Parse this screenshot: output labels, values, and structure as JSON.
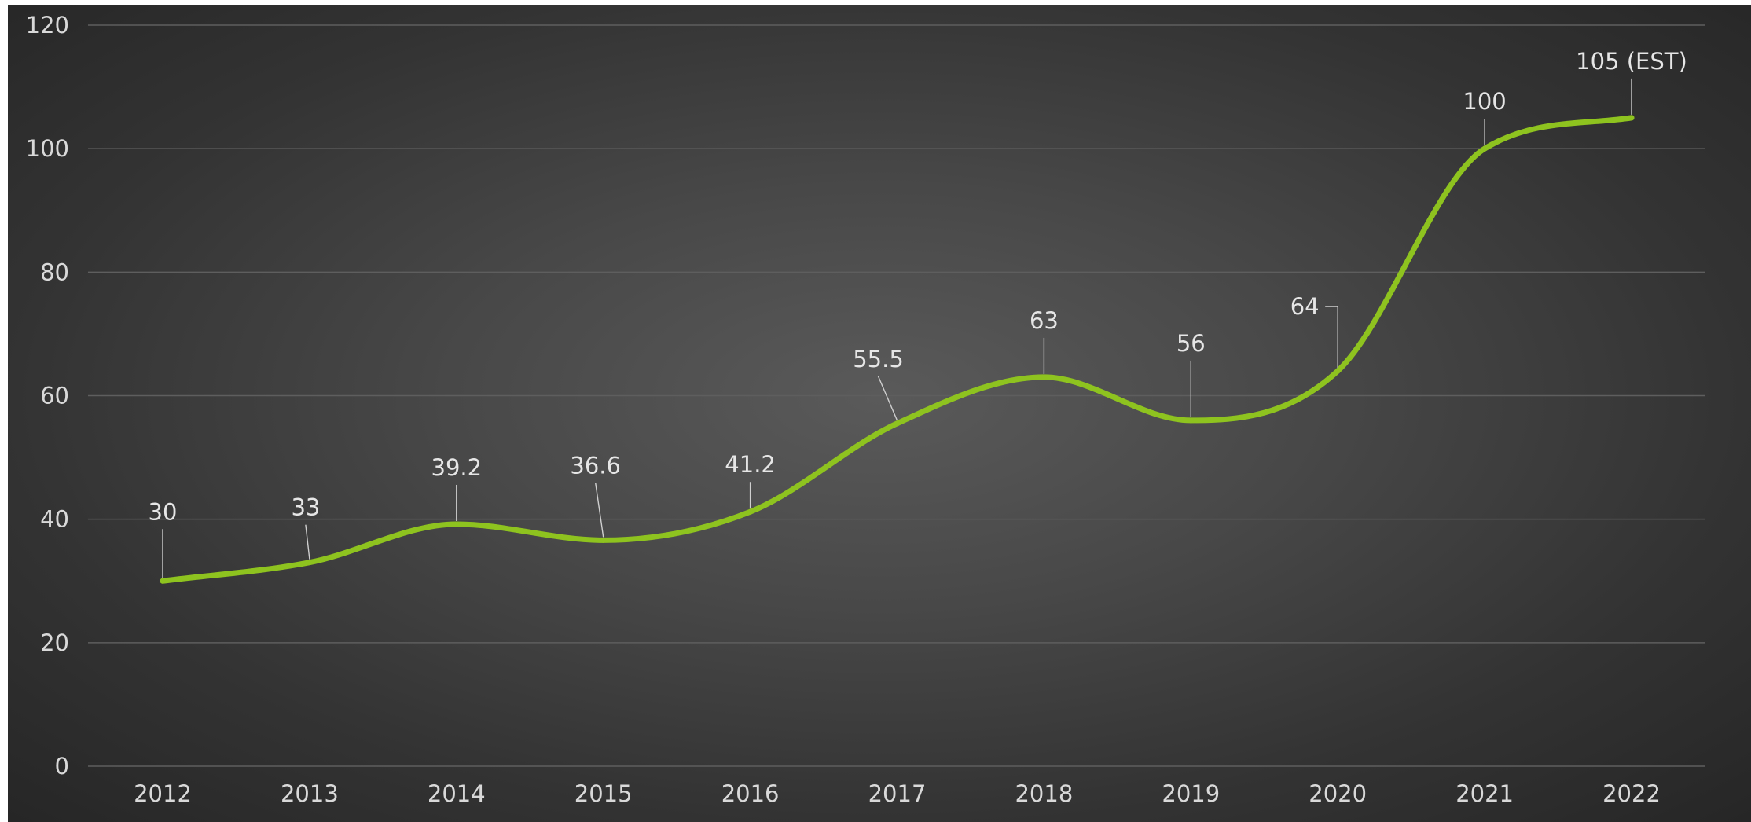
{
  "chart_data": {
    "type": "line",
    "title": "",
    "xlabel": "",
    "ylabel": "",
    "categories": [
      "2012",
      "2013",
      "2014",
      "2015",
      "2016",
      "2017",
      "2018",
      "2019",
      "2020",
      "2021",
      "2022"
    ],
    "series": [
      {
        "values": [
          30,
          33,
          39.2,
          36.6,
          41.2,
          55.5,
          63,
          56,
          64,
          100,
          105
        ],
        "labels": [
          "30",
          "33",
          "39.2",
          "36.6",
          "41.2",
          "55.5",
          "63",
          "56",
          "64",
          "100",
          "105 (EST)"
        ],
        "color": "#8ec31f",
        "smooth": true
      }
    ],
    "ylim": [
      0,
      120
    ],
    "yticks": [
      "0",
      "20",
      "40",
      "60",
      "80",
      "100",
      "120"
    ],
    "grid": true,
    "legend": "none"
  },
  "colors": {
    "line": "#8ec31f",
    "background": "#474747",
    "gridline": "#5e5e5e",
    "text": "#d9d9d9"
  }
}
